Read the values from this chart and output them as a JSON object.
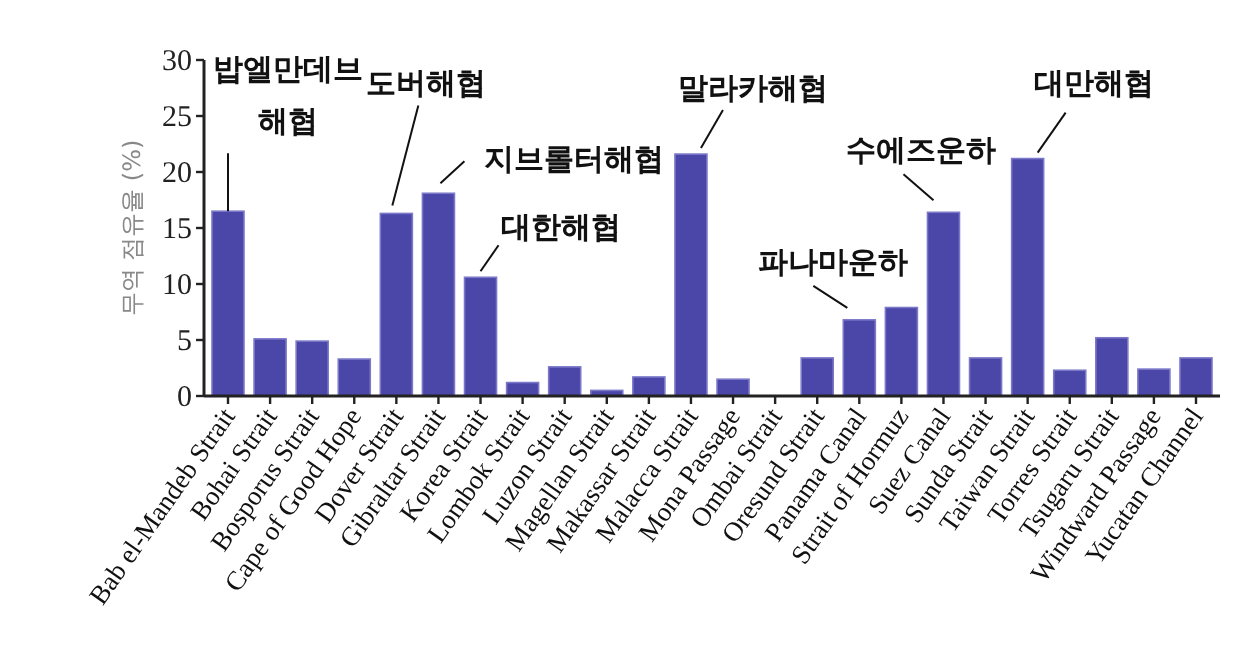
{
  "chart_data": {
    "type": "bar",
    "ylabel": "무역 점유율 (%)",
    "categories": [
      "Bab el-Mandeb Strait",
      "Bohai Strait",
      "Bosporus Strait",
      "Cape of Good Hope",
      "Dover Strait",
      "Gibraltar Strait",
      "Korea Strait",
      "Lombok Strait",
      "Luzon Strait",
      "Magellan Strait",
      "Makassar Strait",
      "Malacca Strait",
      "Mona Passage",
      "Ombai Strait",
      "Oresund Strait",
      "Panama Canal",
      "Strait of Hormuz",
      "Suez Canal",
      "Sunda Strait",
      "Taiwan Strait",
      "Torres Strait",
      "Tsugaru Strait",
      "Windward Passage",
      "Yucatan Channel"
    ],
    "values": [
      16.5,
      5.1,
      4.9,
      3.3,
      16.3,
      18.1,
      10.6,
      1.2,
      2.6,
      0.5,
      1.7,
      21.6,
      1.5,
      0,
      3.4,
      6.8,
      7.9,
      16.4,
      3.4,
      21.2,
      2.3,
      5.2,
      2.4,
      3.4
    ],
    "color": "#4a47a8",
    "ylim": [
      0,
      30
    ],
    "yticks": [
      0,
      5,
      10,
      15,
      20,
      25,
      30
    ],
    "grid": false,
    "annotations": [
      {
        "text": "밥엘만데브 해협",
        "x": "Bab el-Mandeb Strait",
        "y": 16.5
      },
      {
        "text": "도버해협",
        "x": "Dover Strait",
        "y": 16.3
      },
      {
        "text": "지브롤터해협",
        "x": "Gibraltar Strait",
        "y": 18.1
      },
      {
        "text": "대한해협",
        "x": "Korea Strait",
        "y": 10.6
      },
      {
        "text": "말라카해협",
        "x": "Malacca Strait",
        "y": 21.6
      },
      {
        "text": "파나마운하",
        "x": "Panama Canal",
        "y": 6.8
      },
      {
        "text": "수에즈운하",
        "x": "Suez Canal",
        "y": 16.4
      },
      {
        "text": "대만해협",
        "x": "Taiwan Strait",
        "y": 21.2
      }
    ]
  }
}
